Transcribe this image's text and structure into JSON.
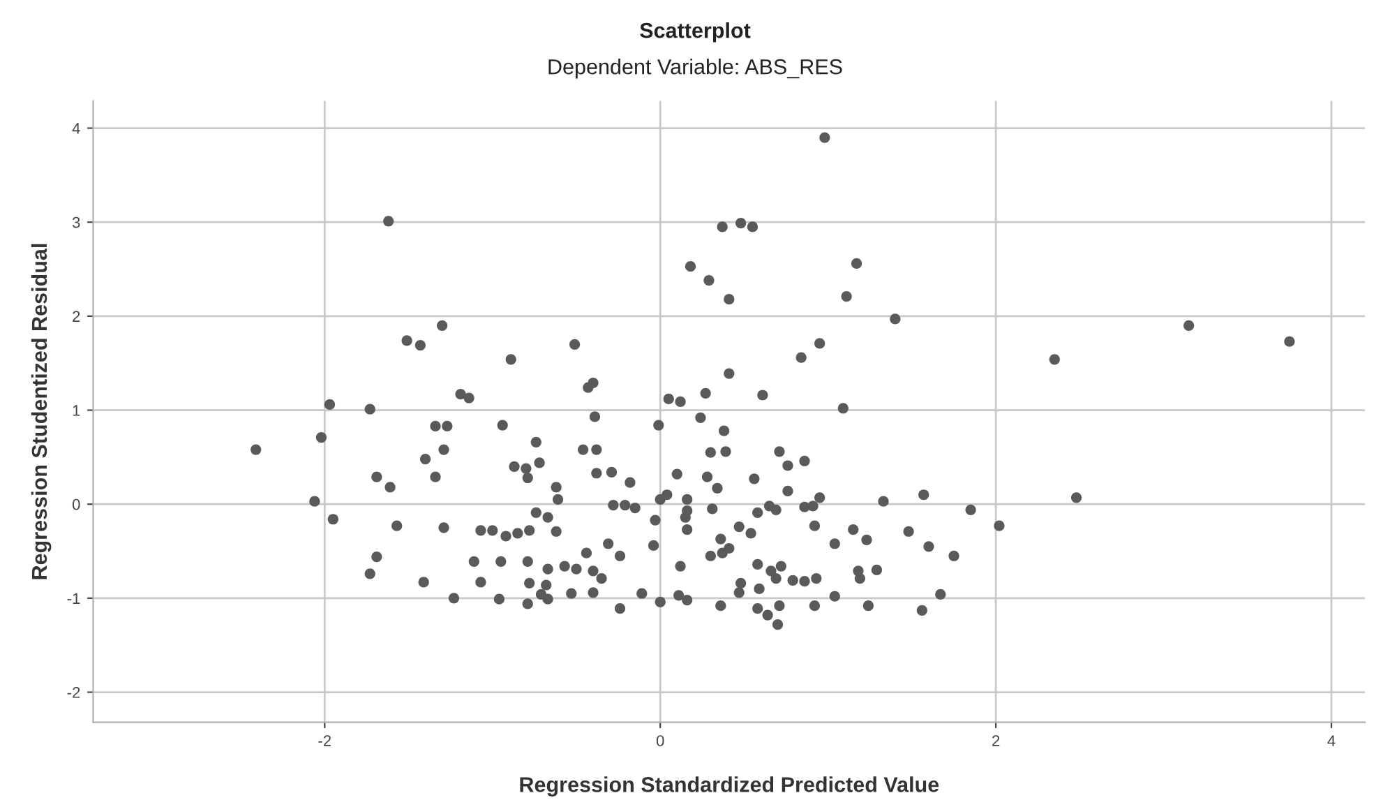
{
  "chart_data": {
    "type": "scatter",
    "title": "Scatterplot",
    "subtitle": "Dependent Variable: ABS_RES",
    "xlabel": "Regression Standardized Predicted Value",
    "ylabel": "Regression Studentized Residual",
    "xlim": [
      -3.38,
      4.2
    ],
    "ylim": [
      -2.32,
      4.29
    ],
    "xticks": [
      -2,
      0,
      2,
      4
    ],
    "yticks": [
      -2,
      -1,
      0,
      1,
      2,
      3,
      4
    ],
    "grid": true,
    "marker": "circle",
    "series": [
      {
        "color": "#5a5a5a",
        "x": [
          0.98,
          -1.62,
          -1.3,
          -1.51,
          -1.43,
          -0.51,
          -0.89,
          -1.19,
          -1.14,
          -0.4,
          -0.43,
          -1.97,
          -1.73,
          -0.39,
          -1.34,
          -1.27,
          -0.94,
          -0.01,
          0.05,
          0.12,
          -2.02,
          -2.41,
          -0.74,
          -1.29,
          -0.46,
          -0.38,
          -1.4,
          -0.72,
          -0.87,
          -0.8,
          0.37,
          0.48,
          0.55,
          0.18,
          0.29,
          0.41,
          1.17,
          1.11,
          1.4,
          3.15,
          3.75,
          2.35,
          0.95,
          0.84,
          0.41,
          0.27,
          0.61,
          1.09,
          0.24,
          0.38,
          0.3,
          0.39,
          0.71,
          0.76,
          0.86,
          -0.79,
          -1.69,
          -1.61,
          -1.34,
          -0.62,
          -0.61,
          -0.38,
          -0.29,
          -0.18,
          -0.28,
          -0.21,
          -0.15,
          0.1,
          0.04,
          0.0,
          0.16,
          0.15,
          0.16,
          -2.06,
          -1.95,
          -1.57,
          -1.29,
          -1.07,
          -1.0,
          -0.92,
          -0.85,
          -0.78,
          -0.74,
          -0.67,
          -0.62,
          -0.03,
          -0.04,
          -0.31,
          -0.24,
          -0.44,
          -1.69,
          -1.73,
          -1.41,
          -1.11,
          -1.07,
          -0.95,
          -0.79,
          -0.78,
          -0.67,
          -0.68,
          -0.71,
          -0.57,
          -0.5,
          -0.4,
          -0.35,
          -0.4,
          -0.53,
          -1.23,
          -0.96,
          -0.79,
          -0.67,
          -0.24,
          -0.11,
          0.0,
          0.12,
          0.11,
          0.16,
          0.28,
          0.34,
          0.56,
          0.76,
          0.16,
          0.31,
          0.58,
          0.65,
          0.69,
          0.86,
          0.91,
          0.95,
          1.33,
          1.57,
          1.85,
          2.02,
          2.48,
          0.92,
          1.15,
          1.23,
          1.04,
          1.48,
          1.6,
          1.75,
          0.47,
          0.54,
          0.36,
          0.41,
          0.3,
          0.37,
          0.58,
          0.66,
          0.72,
          0.69,
          0.79,
          0.86,
          0.93,
          0.48,
          0.47,
          0.59,
          1.18,
          1.19,
          1.29,
          0.36,
          0.58,
          0.64,
          0.7,
          0.71,
          0.92,
          1.04,
          1.24,
          1.56,
          1.67
        ],
        "values": [
          3.9,
          3.01,
          1.9,
          1.74,
          1.69,
          1.7,
          1.54,
          1.17,
          1.13,
          1.29,
          1.24,
          1.06,
          1.01,
          0.93,
          0.83,
          0.83,
          0.84,
          0.84,
          1.12,
          1.09,
          0.71,
          0.58,
          0.66,
          0.58,
          0.58,
          0.58,
          0.48,
          0.44,
          0.4,
          0.38,
          2.95,
          2.99,
          2.95,
          2.53,
          2.38,
          2.18,
          2.56,
          2.21,
          1.97,
          1.9,
          1.73,
          1.54,
          1.71,
          1.56,
          1.39,
          1.18,
          1.16,
          1.02,
          0.92,
          0.78,
          0.55,
          0.56,
          0.56,
          0.41,
          0.46,
          0.28,
          0.29,
          0.18,
          0.29,
          0.18,
          0.05,
          0.33,
          0.34,
          0.23,
          -0.01,
          -0.01,
          -0.04,
          0.32,
          0.1,
          0.05,
          0.05,
          -0.14,
          -0.27,
          0.03,
          -0.16,
          -0.23,
          -0.25,
          -0.28,
          -0.28,
          -0.34,
          -0.31,
          -0.28,
          -0.09,
          -0.14,
          -0.29,
          -0.17,
          -0.44,
          -0.42,
          -0.55,
          -0.52,
          -0.56,
          -0.74,
          -0.83,
          -0.61,
          -0.83,
          -0.61,
          -0.61,
          -0.84,
          -0.69,
          -0.86,
          -0.96,
          -0.66,
          -0.69,
          -0.71,
          -0.79,
          -0.94,
          -0.95,
          -1.0,
          -1.01,
          -1.06,
          -1.01,
          -1.11,
          -0.95,
          -1.04,
          -0.66,
          -0.97,
          -1.02,
          0.29,
          0.17,
          0.27,
          0.14,
          -0.07,
          -0.05,
          -0.09,
          -0.02,
          -0.06,
          -0.03,
          -0.02,
          0.07,
          0.03,
          0.1,
          -0.06,
          -0.23,
          0.07,
          -0.23,
          -0.27,
          -0.38,
          -0.42,
          -0.29,
          -0.45,
          -0.55,
          -0.24,
          -0.31,
          -0.37,
          -0.47,
          -0.55,
          -0.52,
          -0.64,
          -0.71,
          -0.66,
          -0.79,
          -0.81,
          -0.82,
          -0.79,
          -0.84,
          -0.94,
          -0.9,
          -0.71,
          -0.79,
          -0.7,
          -1.08,
          -1.11,
          -1.18,
          -1.28,
          -1.08,
          -1.08,
          -0.98,
          -1.08,
          -1.13,
          -0.96
        ]
      }
    ]
  }
}
